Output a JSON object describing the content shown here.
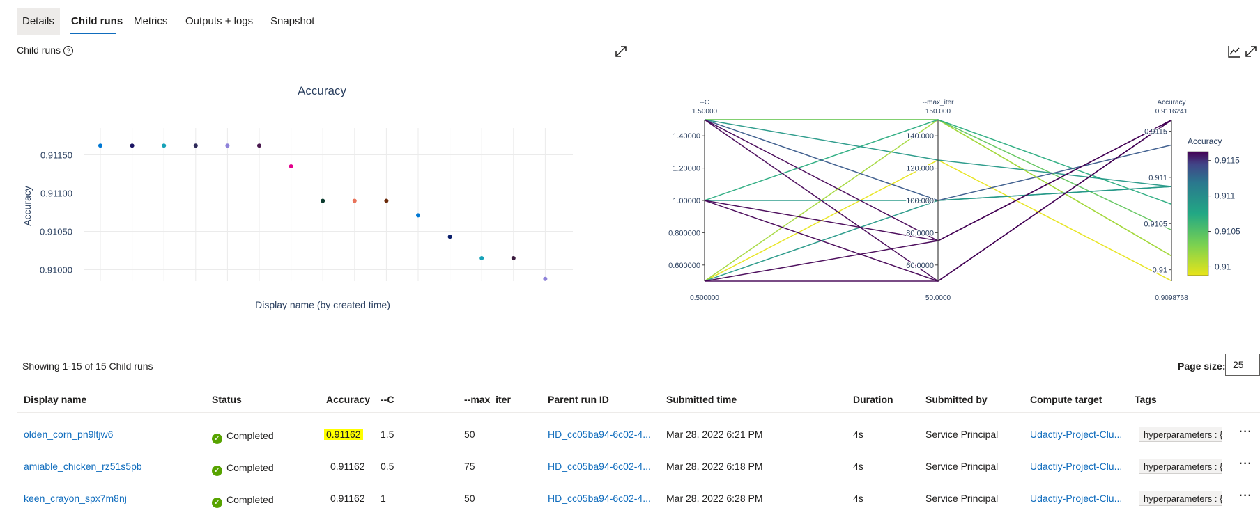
{
  "tabs": [
    {
      "label": "Details"
    },
    {
      "label": "Child runs"
    },
    {
      "label": "Metrics"
    },
    {
      "label": "Outputs + logs"
    },
    {
      "label": "Snapshot"
    }
  ],
  "section_title": "Child runs",
  "chart_data": [
    {
      "type": "scatter",
      "title": "Accuracy",
      "xlabel": "Display name (by created time)",
      "ylabel": "Accuracy",
      "yticks": [
        "0.91000",
        "0.91050",
        "0.91100",
        "0.91150"
      ],
      "ylim": [
        0.90985,
        0.91185
      ],
      "grid": true,
      "points": [
        {
          "y": 0.91162,
          "color": "#0078d4"
        },
        {
          "y": 0.91162,
          "color": "#1b1464"
        },
        {
          "y": 0.91162,
          "color": "#17a2b8"
        },
        {
          "y": 0.91162,
          "color": "#2e2a5a"
        },
        {
          "y": 0.91162,
          "color": "#8e82d9"
        },
        {
          "y": 0.91162,
          "color": "#4a1a4f"
        },
        {
          "y": 0.91135,
          "color": "#e3008c"
        },
        {
          "y": 0.9109,
          "color": "#0b3b2e"
        },
        {
          "y": 0.9109,
          "color": "#e8735a"
        },
        {
          "y": 0.9109,
          "color": "#6b2a0a"
        },
        {
          "y": 0.91071,
          "color": "#0078d4"
        },
        {
          "y": 0.91043,
          "color": "#0a1e6b"
        },
        {
          "y": 0.91015,
          "color": "#17a2b8"
        },
        {
          "y": 0.91015,
          "color": "#3b1b3f"
        },
        {
          "y": 0.90988,
          "color": "#8e82d9"
        }
      ]
    },
    {
      "type": "parallel_coordinates",
      "axes": [
        {
          "name": "--C",
          "top_label": "1.50000",
          "bottom_label": "0.500000",
          "ticks": [
            "1.40000",
            "1.20000",
            "1.00000",
            "0.800000",
            "0.600000"
          ],
          "range": [
            0.5,
            1.5
          ]
        },
        {
          "name": "--max_iter",
          "top_label": "150.000",
          "bottom_label": "50.0000",
          "ticks": [
            "140.000",
            "120.000",
            "100.000",
            "80.0000",
            "60.0000"
          ],
          "range": [
            50,
            150
          ]
        },
        {
          "name": "Accuracy",
          "top_label": "0.9116241",
          "bottom_label": "0.9098768",
          "ticks": [
            "0.9115",
            "0.911",
            "0.9105",
            "0.91"
          ],
          "range": [
            0.9098768,
            0.9116241
          ]
        }
      ],
      "colorbar": {
        "title": "Accuracy",
        "ticks": [
          "0.9115",
          "0.911",
          "0.9105",
          "0.91"
        ]
      },
      "lines": [
        {
          "c": 1.5,
          "iter": 50,
          "acc": 0.91162
        },
        {
          "c": 0.5,
          "iter": 75,
          "acc": 0.91162
        },
        {
          "c": 1.0,
          "iter": 50,
          "acc": 0.91162
        },
        {
          "c": 1.5,
          "iter": 75,
          "acc": 0.91162
        },
        {
          "c": 0.5,
          "iter": 50,
          "acc": 0.91162
        },
        {
          "c": 1.0,
          "iter": 75,
          "acc": 0.91162
        },
        {
          "c": 1.5,
          "iter": 100,
          "acc": 0.91135
        },
        {
          "c": 1.0,
          "iter": 100,
          "acc": 0.9109
        },
        {
          "c": 1.5,
          "iter": 125,
          "acc": 0.9109
        },
        {
          "c": 0.5,
          "iter": 100,
          "acc": 0.9109
        },
        {
          "c": 1.0,
          "iter": 150,
          "acc": 0.91071
        },
        {
          "c": 1.5,
          "iter": 150,
          "acc": 0.91043
        },
        {
          "c": 0.5,
          "iter": 150,
          "acc": 0.91015
        },
        {
          "c": 1.5,
          "iter": 150,
          "acc": 0.91015
        },
        {
          "c": 0.5,
          "iter": 125,
          "acc": 0.90988
        }
      ]
    }
  ],
  "table": {
    "summary": "Showing 1-15 of 15 Child runs",
    "page_size_label": "Page size:",
    "page_size": "25",
    "columns": [
      "Display name",
      "Status",
      "Accuracy",
      "--C",
      "--max_iter",
      "Parent run ID",
      "Submitted time",
      "Duration",
      "Submitted by",
      "Compute target",
      "Tags"
    ],
    "rows": [
      {
        "name": "olden_corn_pn9ltjw6",
        "status": "Completed",
        "accuracy": "0.91162",
        "c": "1.5",
        "max_iter": "50",
        "parent": "HD_cc05ba94-6c02-4...",
        "submitted": "Mar 28, 2022 6:21 PM",
        "duration": "4s",
        "by": "Service Principal",
        "compute": "Udactiy-Project-Clu...",
        "tags": "hyperparameters : {\"-"
      },
      {
        "name": "amiable_chicken_rz51s5pb",
        "status": "Completed",
        "accuracy": "0.91162",
        "c": "0.5",
        "max_iter": "75",
        "parent": "HD_cc05ba94-6c02-4...",
        "submitted": "Mar 28, 2022 6:18 PM",
        "duration": "4s",
        "by": "Service Principal",
        "compute": "Udactiy-Project-Clu...",
        "tags": "hyperparameters : {\"-"
      },
      {
        "name": "keen_crayon_spx7m8nj",
        "status": "Completed",
        "accuracy": "0.91162",
        "c": "1",
        "max_iter": "50",
        "parent": "HD_cc05ba94-6c02-4...",
        "submitted": "Mar 28, 2022 6:28 PM",
        "duration": "4s",
        "by": "Service Principal",
        "compute": "Udactiy-Project-Clu...",
        "tags": "hyperparameters : {\"-"
      }
    ],
    "more_label": "···"
  }
}
